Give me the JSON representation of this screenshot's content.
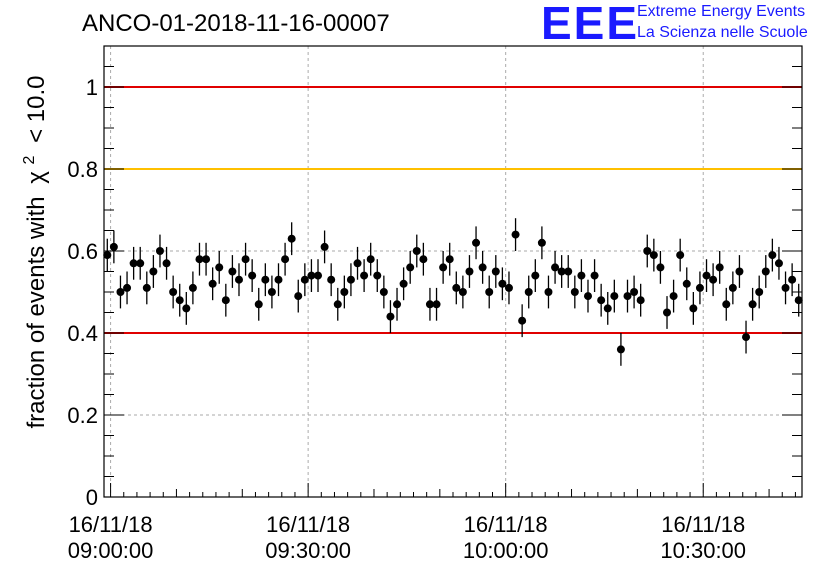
{
  "header": {
    "title": "ANCO-01-2018-11-16-00007",
    "logo": "EEE",
    "org_line1": "Extreme Energy Events",
    "org_line2": "La Scienza nelle Scuole"
  },
  "colors": {
    "upper_limit_line": "#e00000",
    "warning_line": "#ffc000",
    "lower_limit_line": "#e00000",
    "markers": "#000000",
    "grid": "#aaaaaa",
    "logo": "#1a1aff"
  },
  "chart_data": {
    "type": "scatter",
    "title": "ANCO-01-2018-11-16-00007",
    "ylabel_prefix": "fraction of events with",
    "ylabel_symbol": "χ",
    "ylabel_exponent": "2",
    "ylabel_suffix": "< 10.0",
    "xlabel": "",
    "ylim": [
      0,
      1.1
    ],
    "yticks": [
      0,
      0.2,
      0.4,
      0.6,
      0.8,
      1
    ],
    "ytick_labels": [
      "0",
      "0.2",
      "0.4",
      "0.6",
      "0.8",
      "1"
    ],
    "x_unit": "minutes after 16/11/18 09:00:00",
    "xlim": [
      -1,
      105
    ],
    "xticks": [
      0,
      30,
      60,
      90
    ],
    "xtick_labels": [
      {
        "date": "16/11/18",
        "time": "09:00:00"
      },
      {
        "date": "16/11/18",
        "time": "09:30:00"
      },
      {
        "date": "16/11/18",
        "time": "10:00:00"
      },
      {
        "date": "16/11/18",
        "time": "10:30:00"
      }
    ],
    "grid": true,
    "reference_lines": [
      {
        "y": 1.0,
        "color": "#e00000"
      },
      {
        "y": 0.8,
        "color": "#ffc000"
      },
      {
        "y": 0.4,
        "color": "#e00000"
      }
    ],
    "error_bar": 0.04,
    "x": [
      -0.5,
      0.5,
      1.5,
      2.5,
      3.5,
      4.5,
      5.5,
      6.5,
      7.5,
      8.5,
      9.5,
      10.5,
      11.5,
      12.5,
      13.5,
      14.5,
      15.5,
      16.5,
      17.5,
      18.5,
      19.5,
      20.5,
      21.5,
      22.5,
      23.5,
      24.5,
      25.5,
      26.5,
      27.5,
      28.5,
      29.5,
      30.5,
      31.5,
      32.5,
      33.5,
      34.5,
      35.5,
      36.5,
      37.5,
      38.5,
      39.5,
      40.5,
      41.5,
      42.5,
      43.5,
      44.5,
      45.5,
      46.5,
      47.5,
      48.5,
      49.5,
      50.5,
      51.5,
      52.5,
      53.5,
      54.5,
      55.5,
      56.5,
      57.5,
      58.5,
      59.5,
      60.5,
      61.5,
      62.5,
      63.5,
      64.5,
      65.5,
      66.5,
      67.5,
      68.5,
      69.5,
      70.5,
      71.5,
      72.5,
      73.5,
      74.5,
      75.5,
      76.5,
      77.5,
      78.5,
      79.5,
      80.5,
      81.5,
      82.5,
      83.5,
      84.5,
      85.5,
      86.5,
      87.5,
      88.5,
      89.5,
      90.5,
      91.5,
      92.5,
      93.5,
      94.5,
      95.5,
      96.5,
      97.5,
      98.5,
      99.5,
      100.5,
      101.5,
      102.5,
      103.5,
      104.5
    ],
    "y": [
      0.59,
      0.61,
      0.5,
      0.51,
      0.57,
      0.57,
      0.51,
      0.55,
      0.6,
      0.57,
      0.5,
      0.48,
      0.46,
      0.51,
      0.58,
      0.58,
      0.52,
      0.56,
      0.48,
      0.55,
      0.53,
      0.58,
      0.54,
      0.47,
      0.53,
      0.5,
      0.53,
      0.58,
      0.63,
      0.49,
      0.53,
      0.54,
      0.54,
      0.61,
      0.53,
      0.47,
      0.5,
      0.53,
      0.57,
      0.54,
      0.58,
      0.54,
      0.5,
      0.44,
      0.47,
      0.52,
      0.56,
      0.6,
      0.58,
      0.47,
      0.47,
      0.56,
      0.58,
      0.51,
      0.5,
      0.55,
      0.62,
      0.56,
      0.5,
      0.55,
      0.52,
      0.51,
      0.64,
      0.43,
      0.5,
      0.54,
      0.62,
      0.5,
      0.56,
      0.55,
      0.55,
      0.5,
      0.54,
      0.49,
      0.54,
      0.48,
      0.46,
      0.49,
      0.36,
      0.49,
      0.5,
      0.48,
      0.6,
      0.59,
      0.56,
      0.45,
      0.49,
      0.59,
      0.52,
      0.46,
      0.51,
      0.54,
      0.53,
      0.56,
      0.47,
      0.51,
      0.55,
      0.39,
      0.47,
      0.5,
      0.55,
      0.59,
      0.57,
      0.51,
      0.53,
      0.48
    ]
  }
}
